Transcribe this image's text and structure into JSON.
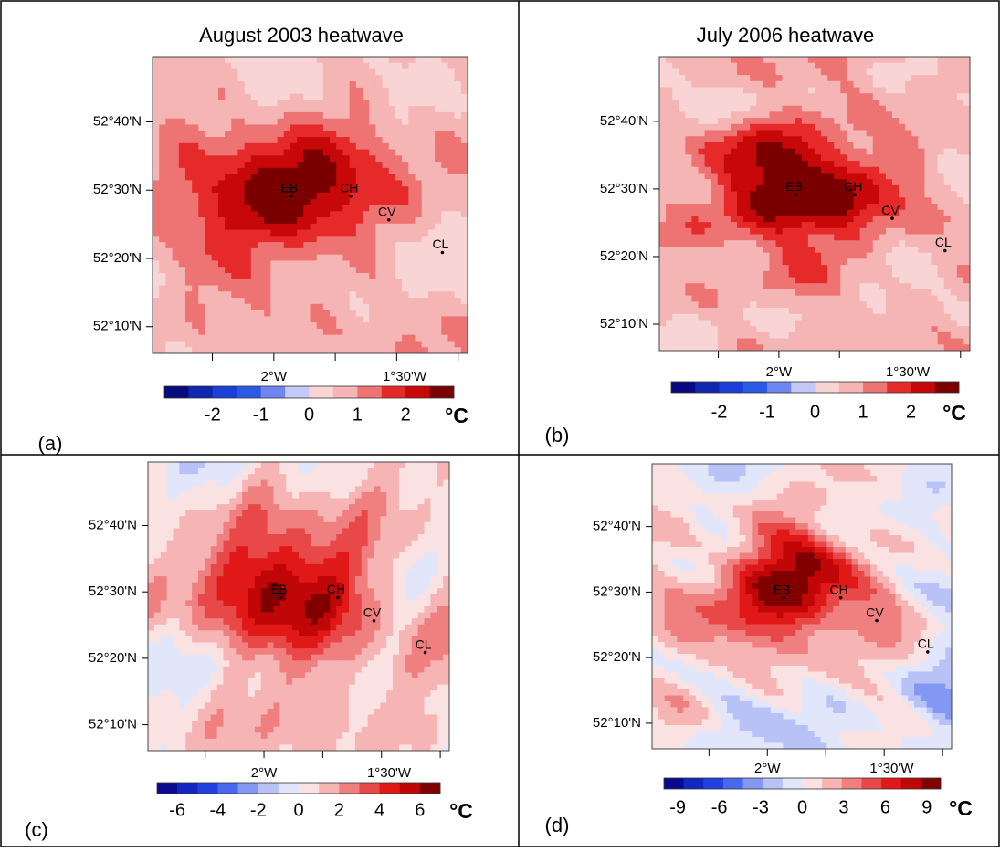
{
  "panels": [
    {
      "label": "(a)",
      "title": "August 2003 heatwave",
      "lat_labels": [
        "52°40'N",
        "52°30'N",
        "52°20'N",
        "52°10'N"
      ],
      "lon_labels": [
        "2°W",
        "1°30'W"
      ],
      "sites": [
        "EB",
        "CH",
        "CV",
        "CL"
      ],
      "colorbar": {
        "clim": [
          -3,
          3
        ],
        "ticks": [
          -2,
          -1,
          0,
          1,
          2
        ],
        "unit": "°C",
        "colors": [
          "#0a0a80",
          "#1028b0",
          "#1a40d8",
          "#2c5ae8",
          "#6f86f2",
          "#c3c9f7",
          "#f8d4d4",
          "#f5b5b5",
          "#ee7474",
          "#e62a2a",
          "#c80808",
          "#7a0000"
        ]
      }
    },
    {
      "label": "(b)",
      "title": "July 2006 heatwave",
      "lat_labels": [
        "52°40'N",
        "52°30'N",
        "52°20'N",
        "52°10'N"
      ],
      "lon_labels": [
        "2°W",
        "1°30'W"
      ],
      "sites": [
        "EB",
        "CH",
        "CV",
        "CL"
      ],
      "colorbar": {
        "clim": [
          -3,
          3
        ],
        "ticks": [
          -2,
          -1,
          0,
          1,
          2
        ],
        "unit": "°C",
        "colors": [
          "#0a0a80",
          "#1028b0",
          "#1a40d8",
          "#2c5ae8",
          "#6f86f2",
          "#c3c9f7",
          "#f8d4d4",
          "#f5b5b5",
          "#ee7474",
          "#e62a2a",
          "#c80808",
          "#7a0000"
        ]
      }
    },
    {
      "label": "(c)",
      "lat_labels": [
        "52°40'N",
        "52°30'N",
        "52°20'N",
        "52°10'N"
      ],
      "lon_labels": [
        "2°W",
        "1°30'W"
      ],
      "sites": [
        "EB",
        "CH",
        "CV",
        "CL"
      ],
      "colorbar": {
        "clim": [
          -7,
          7
        ],
        "ticks": [
          -6,
          -4,
          -2,
          0,
          2,
          4,
          6
        ],
        "unit": "°C",
        "colors": [
          "#0a0a90",
          "#1226c0",
          "#2040e0",
          "#4a68ee",
          "#8398f2",
          "#b8c2f6",
          "#e2e6fb",
          "#fbe2e2",
          "#f6b4b4",
          "#f08080",
          "#e84848",
          "#e01818",
          "#c00606",
          "#800000"
        ]
      }
    },
    {
      "label": "(d)",
      "lat_labels": [
        "52°40'N",
        "52°30'N",
        "52°20'N",
        "52°10'N"
      ],
      "lon_labels": [
        "2°W",
        "1°30'W"
      ],
      "sites": [
        "EB",
        "CH",
        "CV",
        "CL"
      ],
      "colorbar": {
        "clim": [
          -10,
          10
        ],
        "ticks": [
          -9,
          -6,
          -3,
          0,
          3,
          6,
          9
        ],
        "unit": "°C",
        "colors": [
          "#0a0a90",
          "#1226c0",
          "#2040e0",
          "#4a68ee",
          "#8398f2",
          "#b8c2f6",
          "#e2e6fb",
          "#fbe2e2",
          "#f6b4b4",
          "#f08080",
          "#e84848",
          "#e01818",
          "#c00606",
          "#800000"
        ]
      }
    }
  ]
}
